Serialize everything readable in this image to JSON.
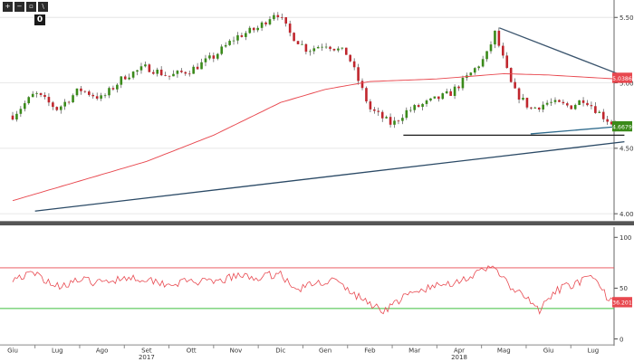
{
  "toolbar": {
    "items": [
      {
        "icon": "zoom-in-icon",
        "glyph": "+"
      },
      {
        "icon": "zoom-out-icon",
        "glyph": "−"
      },
      {
        "icon": "reset-icon",
        "glyph": "▫"
      },
      {
        "icon": "draw-icon",
        "glyph": "\\"
      }
    ],
    "zoom_label": "0"
  },
  "chart_data": [
    {
      "type": "candlestick",
      "panel": "price",
      "title": "",
      "yticks": [
        4.0,
        4.5,
        5.0,
        5.5
      ],
      "ytick_labels": [
        "4.00",
        "4.50",
        "5.00",
        "5.50"
      ],
      "ylim": [
        3.95,
        5.62
      ],
      "x_months": [
        "Giu",
        "Lug",
        "Ago",
        "Set",
        "Ott",
        "Nov",
        "Dic",
        "Gen",
        "Feb",
        "Mar",
        "Apr",
        "Mag",
        "Giu",
        "Lug"
      ],
      "x_years": [
        "2017",
        "2018"
      ],
      "price_path": [
        {
          "m": 0.0,
          "v": 4.75
        },
        {
          "m": 0.5,
          "v": 4.92
        },
        {
          "m": 1.0,
          "v": 4.8
        },
        {
          "m": 1.5,
          "v": 4.95
        },
        {
          "m": 2.0,
          "v": 4.88
        },
        {
          "m": 2.5,
          "v": 5.05
        },
        {
          "m": 3.0,
          "v": 5.12
        },
        {
          "m": 3.5,
          "v": 5.05
        },
        {
          "m": 4.0,
          "v": 5.1
        },
        {
          "m": 4.5,
          "v": 5.2
        },
        {
          "m": 5.0,
          "v": 5.35
        },
        {
          "m": 5.5,
          "v": 5.42
        },
        {
          "m": 5.9,
          "v": 5.55
        },
        {
          "m": 6.2,
          "v": 5.38
        },
        {
          "m": 6.6,
          "v": 5.25
        },
        {
          "m": 7.0,
          "v": 5.3
        },
        {
          "m": 7.5,
          "v": 5.22
        },
        {
          "m": 8.0,
          "v": 4.8
        },
        {
          "m": 8.5,
          "v": 4.68
        },
        {
          "m": 8.8,
          "v": 4.78
        },
        {
          "m": 9.3,
          "v": 4.85
        },
        {
          "m": 9.8,
          "v": 4.92
        },
        {
          "m": 10.2,
          "v": 5.05
        },
        {
          "m": 10.6,
          "v": 5.2
        },
        {
          "m": 10.8,
          "v": 5.38
        },
        {
          "m": 11.2,
          "v": 4.95
        },
        {
          "m": 11.6,
          "v": 4.8
        },
        {
          "m": 12.0,
          "v": 4.85
        },
        {
          "m": 12.5,
          "v": 4.82
        },
        {
          "m": 12.8,
          "v": 4.88
        },
        {
          "m": 13.2,
          "v": 4.75
        },
        {
          "m": 13.5,
          "v": 4.67
        }
      ],
      "moving_average": {
        "points": [
          {
            "m": 0.0,
            "v": 4.1
          },
          {
            "m": 1.5,
            "v": 4.25
          },
          {
            "m": 3.0,
            "v": 4.4
          },
          {
            "m": 4.5,
            "v": 4.6
          },
          {
            "m": 6.0,
            "v": 4.85
          },
          {
            "m": 7.0,
            "v": 4.95
          },
          {
            "m": 8.0,
            "v": 5.01
          },
          {
            "m": 9.5,
            "v": 5.03
          },
          {
            "m": 11.0,
            "v": 5.07
          },
          {
            "m": 12.0,
            "v": 5.06
          },
          {
            "m": 13.5,
            "v": 5.03
          }
        ],
        "color": "#e8484f"
      },
      "trendlines": [
        {
          "name": "long-term-support",
          "from": {
            "m": 0.5,
            "v": 4.02
          },
          "to": {
            "m": 13.7,
            "v": 4.55
          },
          "color": "#2b4a66"
        },
        {
          "name": "descending-resistance",
          "from": {
            "m": 10.9,
            "v": 5.42
          },
          "to": {
            "m": 13.7,
            "v": 5.05
          },
          "color": "#3b556e"
        },
        {
          "name": "horizontal-support",
          "from": {
            "m": 8.75,
            "v": 4.6
          },
          "to": {
            "m": 13.7,
            "v": 4.6
          },
          "color": "#1a1a1a"
        },
        {
          "name": "rising-support",
          "from": {
            "m": 11.6,
            "v": 4.61
          },
          "to": {
            "m": 13.7,
            "v": 4.67
          },
          "color": "#2e6a8c"
        }
      ],
      "price_badges": [
        {
          "value": 5.0386,
          "label": "5.0386",
          "color": "#e8484f"
        },
        {
          "value": 4.6679,
          "label": "4.6679",
          "color": "#3a8a1a"
        }
      ],
      "up_color": "#3a8a1a",
      "down_color": "#c0262d"
    },
    {
      "type": "line",
      "panel": "oscillator",
      "ylim": [
        0,
        100
      ],
      "yticks": [
        100,
        50,
        0
      ],
      "ytick_labels": [
        "100",
        "50",
        "0"
      ],
      "upper_band": 70,
      "lower_band": 30,
      "upper_band_color": "#e8484f",
      "lower_band_color": "#3fbf3f",
      "line_color": "#e8484f",
      "points": [
        {
          "m": 0.0,
          "v": 60
        },
        {
          "m": 0.5,
          "v": 64
        },
        {
          "m": 1.0,
          "v": 52
        },
        {
          "m": 1.5,
          "v": 58
        },
        {
          "m": 2.0,
          "v": 55
        },
        {
          "m": 2.5,
          "v": 61
        },
        {
          "m": 3.0,
          "v": 59
        },
        {
          "m": 3.5,
          "v": 54
        },
        {
          "m": 4.0,
          "v": 57
        },
        {
          "m": 4.5,
          "v": 55
        },
        {
          "m": 5.0,
          "v": 62
        },
        {
          "m": 5.5,
          "v": 60
        },
        {
          "m": 6.0,
          "v": 65
        },
        {
          "m": 6.3,
          "v": 48
        },
        {
          "m": 6.8,
          "v": 55
        },
        {
          "m": 7.2,
          "v": 58
        },
        {
          "m": 7.6,
          "v": 45
        },
        {
          "m": 8.0,
          "v": 35
        },
        {
          "m": 8.3,
          "v": 28
        },
        {
          "m": 8.8,
          "v": 42
        },
        {
          "m": 9.3,
          "v": 50
        },
        {
          "m": 9.8,
          "v": 55
        },
        {
          "m": 10.3,
          "v": 62
        },
        {
          "m": 10.8,
          "v": 72
        },
        {
          "m": 11.1,
          "v": 52
        },
        {
          "m": 11.5,
          "v": 40
        },
        {
          "m": 11.8,
          "v": 28
        },
        {
          "m": 12.2,
          "v": 48
        },
        {
          "m": 12.6,
          "v": 55
        },
        {
          "m": 13.0,
          "v": 60
        },
        {
          "m": 13.3,
          "v": 42
        },
        {
          "m": 13.6,
          "v": 36.2
        }
      ],
      "badge": {
        "value": 36.201,
        "label": "36.201",
        "color": "#e8484f"
      }
    }
  ]
}
